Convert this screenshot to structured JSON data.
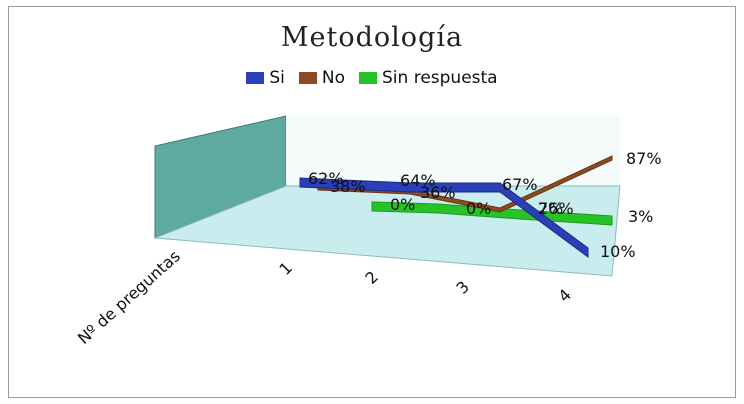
{
  "chart_data": {
    "type": "line",
    "title": "Metodología",
    "xlabel": "Nº de preguntas",
    "categories": [
      "1",
      "2",
      "3",
      "4"
    ],
    "series": [
      {
        "name": "Si",
        "color": "#2b3fb6",
        "values": [
          62,
          64,
          67,
          10
        ],
        "labels": [
          "62%",
          "64%",
          "67%",
          "10%"
        ]
      },
      {
        "name": "No",
        "color": "#8a4a22",
        "values": [
          38,
          36,
          26,
          87
        ],
        "labels": [
          "38%",
          "36%",
          "26%",
          "87%"
        ]
      },
      {
        "name": "Sin respuesta",
        "color": "#27c227",
        "values": [
          0,
          0,
          7,
          3
        ],
        "labels": [
          "0%",
          "0%",
          "7%",
          "3%"
        ]
      }
    ],
    "ylim": [
      0,
      100
    ],
    "legend_position": "top",
    "style": "3d"
  }
}
